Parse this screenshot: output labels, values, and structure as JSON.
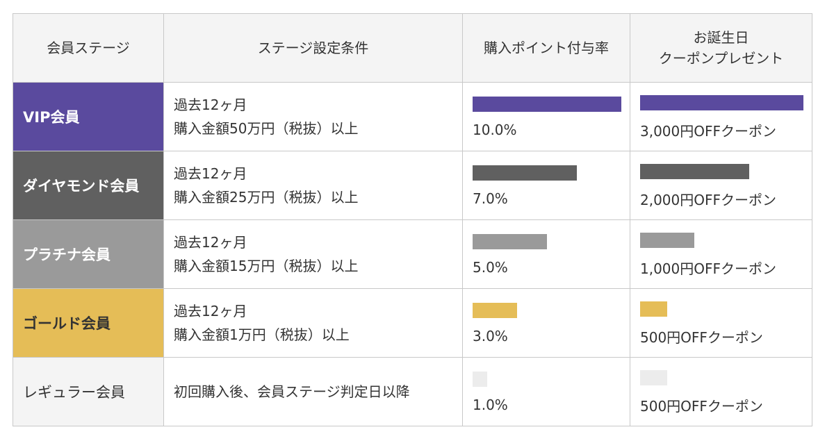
{
  "header": {
    "col_stage": "会員ステージ",
    "col_condition": "ステージ設定条件",
    "col_points": "購入ポイント付与率",
    "col_birthday_line1": "お誕生日",
    "col_birthday_line2": "クーポンプレゼント"
  },
  "rows": [
    {
      "stage": "VIP会員",
      "condition_line1": "過去12ヶ月",
      "condition_line2": "購入金額50万円（税抜）以上",
      "points": "10.0%",
      "points_level": 1.0,
      "coupon": "3,000円OFFクーポン",
      "coupon_level": 1.0,
      "color": "#5a4a9e"
    },
    {
      "stage": "ダイヤモンド会員",
      "condition_line1": "過去12ヶ月",
      "condition_line2": "購入金額25万円（税抜）以上",
      "points": "7.0%",
      "points_level": 0.7,
      "coupon": "2,000円OFFクーポン",
      "coupon_level": 0.667,
      "color": "#606060"
    },
    {
      "stage": "プラチナ会員",
      "condition_line1": "過去12ヶ月",
      "condition_line2": "購入金額15万円（税抜）以上",
      "points": "5.0%",
      "points_level": 0.5,
      "coupon": "1,000円OFFクーポン",
      "coupon_level": 0.333,
      "color": "#9a9a9a"
    },
    {
      "stage": "ゴールド会員",
      "condition_line1": "過去12ヶ月",
      "condition_line2": "購入金額1万円（税抜）以上",
      "points": "3.0%",
      "points_level": 0.3,
      "coupon": "500円OFFクーポン",
      "coupon_level": 0.167,
      "color": "#e5bd57"
    },
    {
      "stage": "レギュラー会員",
      "condition_line1": "初回購入後、会員ステージ判定日以降",
      "condition_line2": "",
      "points": "1.0%",
      "points_level": 0.1,
      "coupon": "500円OFFクーポン",
      "coupon_level": 0.167,
      "color": "#ececec"
    }
  ]
}
